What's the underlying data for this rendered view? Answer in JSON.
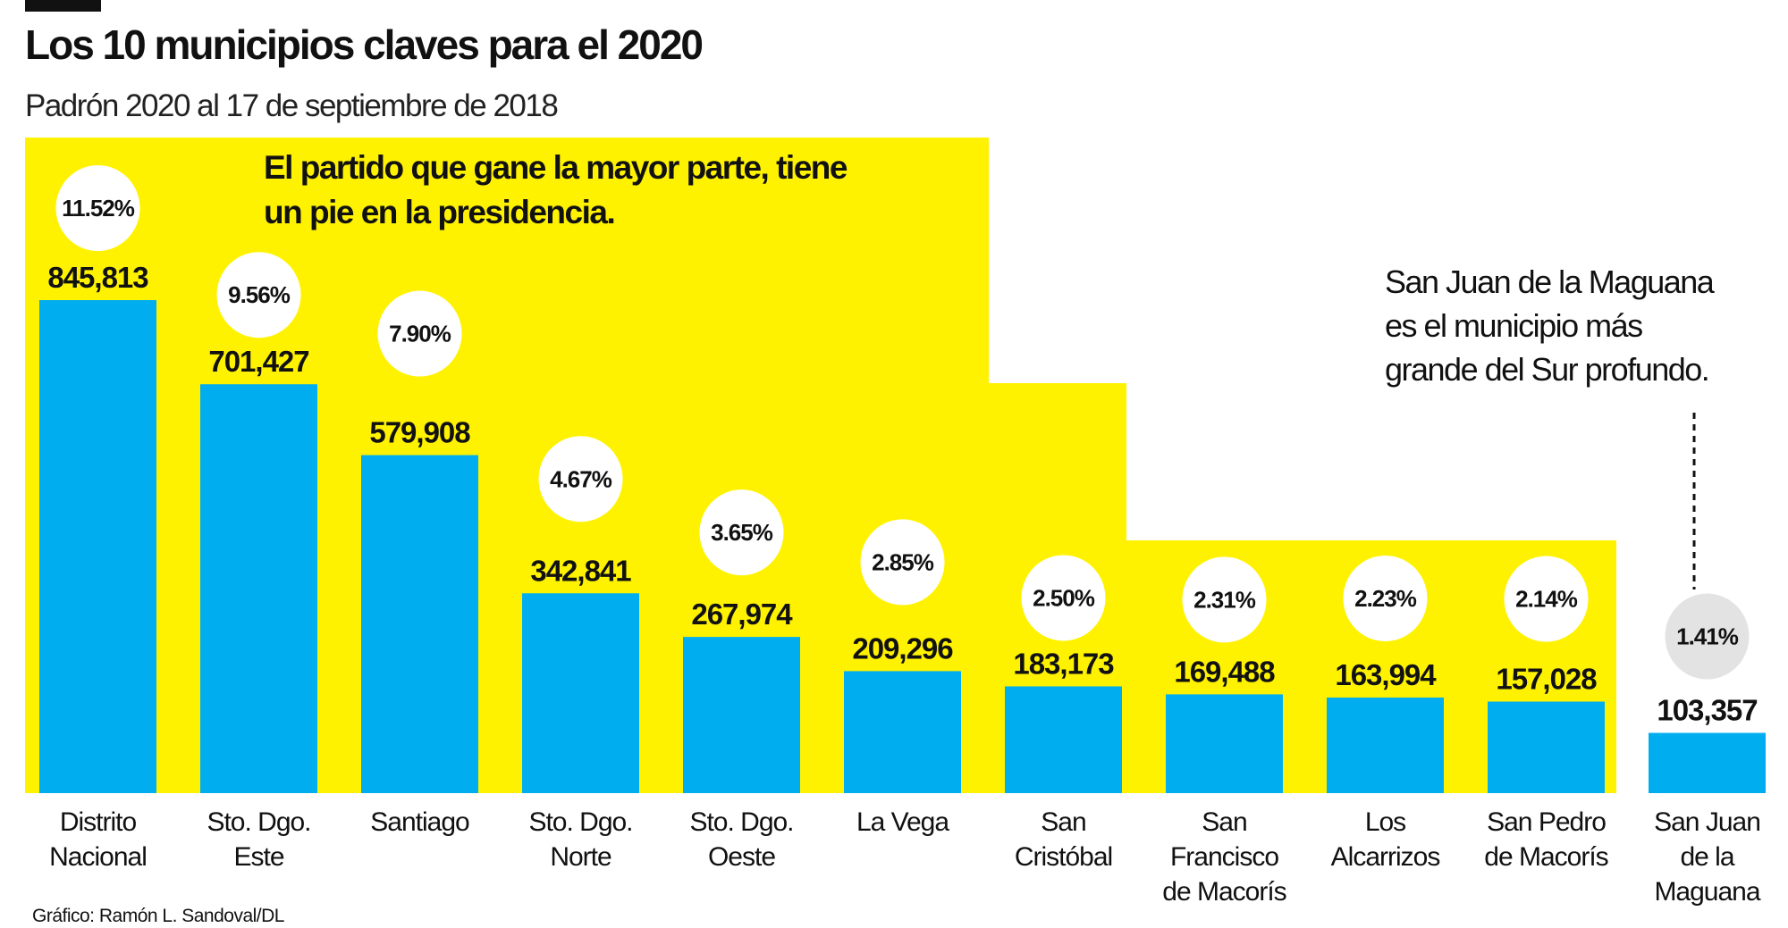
{
  "chart_data": {
    "type": "bar",
    "title": "Los 10 municipios claves para el 2020",
    "subtitle": "Padrón 2020 al 17 de septiembre de 2018",
    "headline": [
      "El partido que gane la mayor parte, tiene",
      "un pie en la presidencia."
    ],
    "annotation": [
      "San Juan de la Maguana",
      "es el municipio más",
      "grande del Sur profundo."
    ],
    "credit": "Gráfico: Ramón L. Sandoval/DL",
    "categories": [
      [
        "Distrito",
        "Nacional"
      ],
      [
        "Sto. Dgo.",
        "Este"
      ],
      [
        "Santiago"
      ],
      [
        "Sto. Dgo.",
        "Norte"
      ],
      [
        "Sto. Dgo.",
        "Oeste"
      ],
      [
        "La Vega"
      ],
      [
        "San",
        "Cristóbal"
      ],
      [
        "San",
        "Francisco",
        "de Macorís"
      ],
      [
        "Los",
        "Alcarrizos"
      ],
      [
        "San Pedro",
        "de Macorís"
      ],
      [
        "San Juan",
        "de la",
        "Maguana"
      ]
    ],
    "values": [
      845813,
      701427,
      579908,
      342841,
      267974,
      209296,
      183173,
      169488,
      163994,
      157028,
      103357
    ],
    "value_labels": [
      "845,813",
      "701,427",
      "579,908",
      "342,841",
      "267,974",
      "209,296",
      "183,173",
      "169,488",
      "163,994",
      "157,028",
      "103,357"
    ],
    "percent_labels": [
      "11.52%",
      "9.56%",
      "7.90%",
      "4.67%",
      "3.65%",
      "2.85%",
      "2.50%",
      "2.31%",
      "2.23%",
      "2.14%",
      "1.41%"
    ],
    "highlighted_index": 10,
    "ylim": [
      0,
      845813
    ],
    "axes_visible": false,
    "grid": false,
    "colors": {
      "bar": "#00AEEF",
      "background_panel": "#FFF200",
      "circle": "#FFFFFF",
      "circle_highlight": "#E3E3E3",
      "text": "#111111"
    }
  }
}
